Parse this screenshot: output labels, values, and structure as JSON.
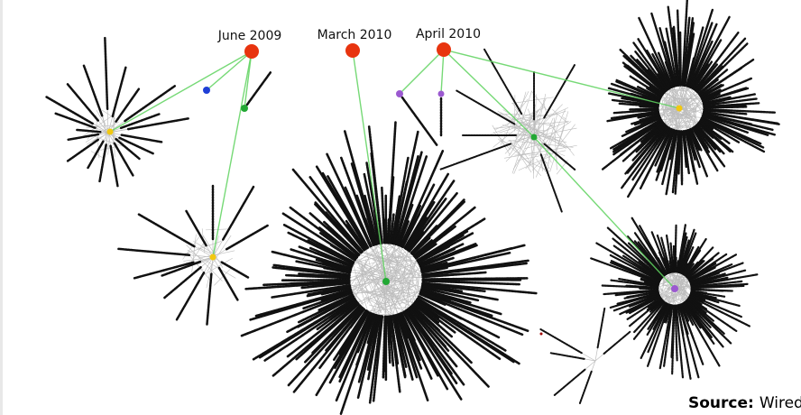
{
  "dates": [
    {
      "label": "June 2009",
      "color": "#e8340f"
    },
    {
      "label": "March 2010",
      "color": "#e8340f"
    },
    {
      "label": "April 2010",
      "color": "#e8340f"
    }
  ],
  "source": {
    "prefix": "Source:",
    "text": "Wired"
  },
  "colors": {
    "edge_link": "#5fd35f",
    "node": "#111111",
    "node_green": "#22a834",
    "node_blue": "#1f3fd6",
    "node_purple": "#9b59d0",
    "node_yellow": "#f2c811",
    "mesh": "#bdbdbd"
  }
}
